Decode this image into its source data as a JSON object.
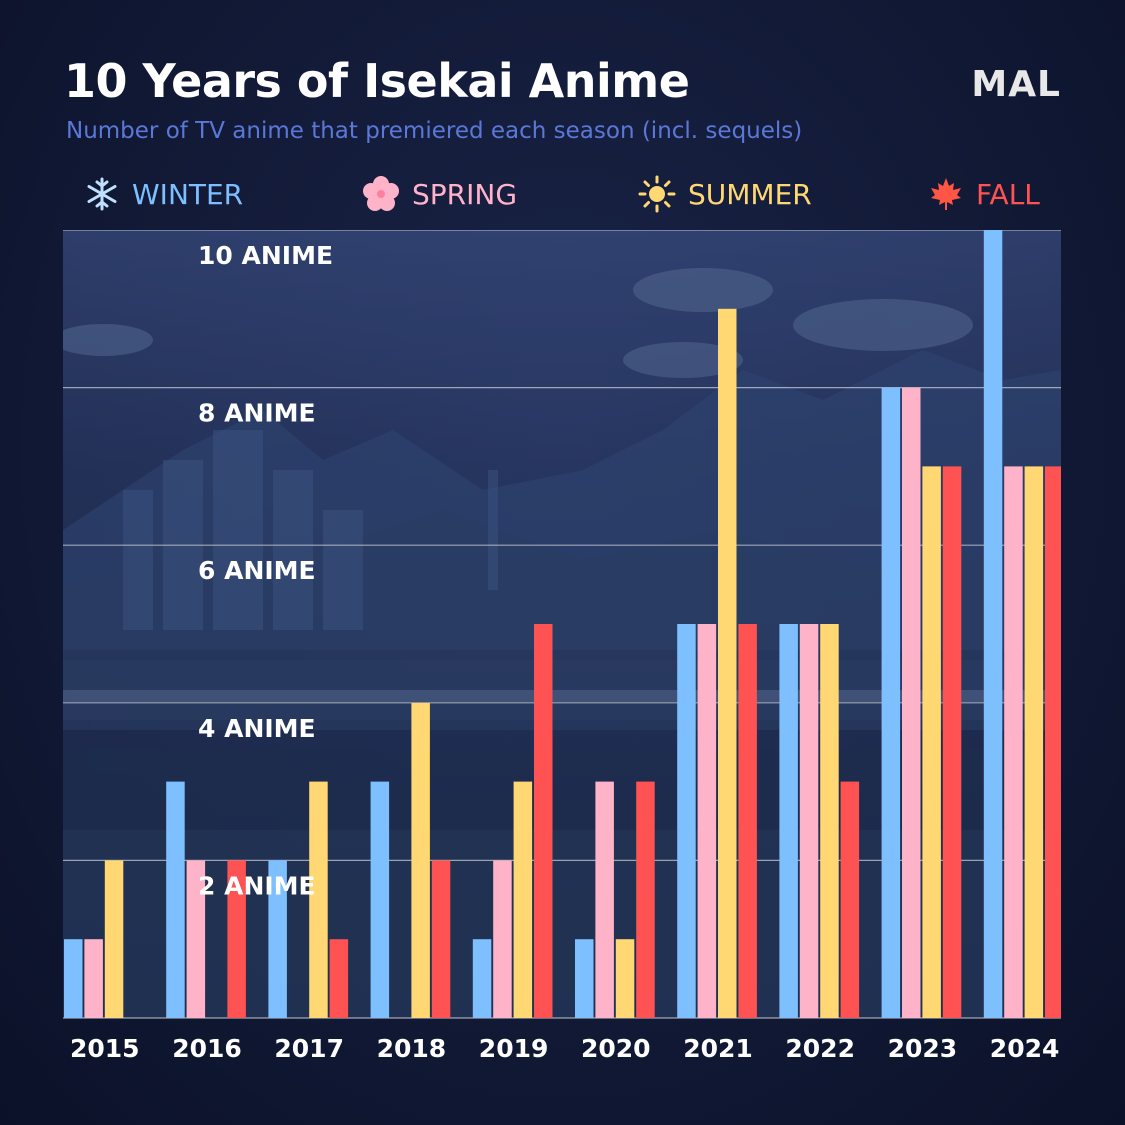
{
  "title": "10 Years of Isekai Anime",
  "subtitle": "Number of TV anime that premiered each season (incl. sequels)",
  "logo": "MAL",
  "legend": [
    {
      "label": "WINTER",
      "icon": "snowflake-icon",
      "color": "#7dbfff"
    },
    {
      "label": "SPRING",
      "icon": "cherry-blossom-icon",
      "color": "#ffb3c8"
    },
    {
      "label": "SUMMER",
      "icon": "sun-icon",
      "color": "#ffd873"
    },
    {
      "label": "FALL",
      "icon": "maple-leaf-icon",
      "color": "#ff5252"
    }
  ],
  "chart_data": {
    "type": "bar",
    "title": "10 Years of Isekai Anime",
    "subtitle": "Number of TV anime that premiered each season (incl. sequels)",
    "categories": [
      "2015",
      "2016",
      "2017",
      "2018",
      "2019",
      "2020",
      "2021",
      "2022",
      "2023",
      "2024"
    ],
    "series": [
      {
        "name": "WINTER",
        "color": "#7dbfff",
        "values": [
          1,
          3,
          2,
          3,
          1,
          1,
          5,
          5,
          8,
          10
        ]
      },
      {
        "name": "SPRING",
        "color": "#ffb3c8",
        "values": [
          1,
          2,
          0,
          0,
          2,
          3,
          5,
          5,
          8,
          7
        ]
      },
      {
        "name": "SUMMER",
        "color": "#ffd873",
        "values": [
          2,
          0,
          3,
          4,
          3,
          1,
          9,
          5,
          7,
          7
        ]
      },
      {
        "name": "FALL",
        "color": "#ff5252",
        "values": [
          0,
          2,
          1,
          2,
          5,
          3,
          5,
          3,
          7,
          7
        ]
      }
    ],
    "ylim": [
      0,
      10
    ],
    "yticks": [
      2,
      4,
      6,
      8,
      10
    ],
    "ytick_labels": [
      "2 ANIME",
      "4 ANIME",
      "6 ANIME",
      "8 ANIME",
      "10 ANIME"
    ],
    "xlabel": "",
    "ylabel": "",
    "grid": true
  }
}
